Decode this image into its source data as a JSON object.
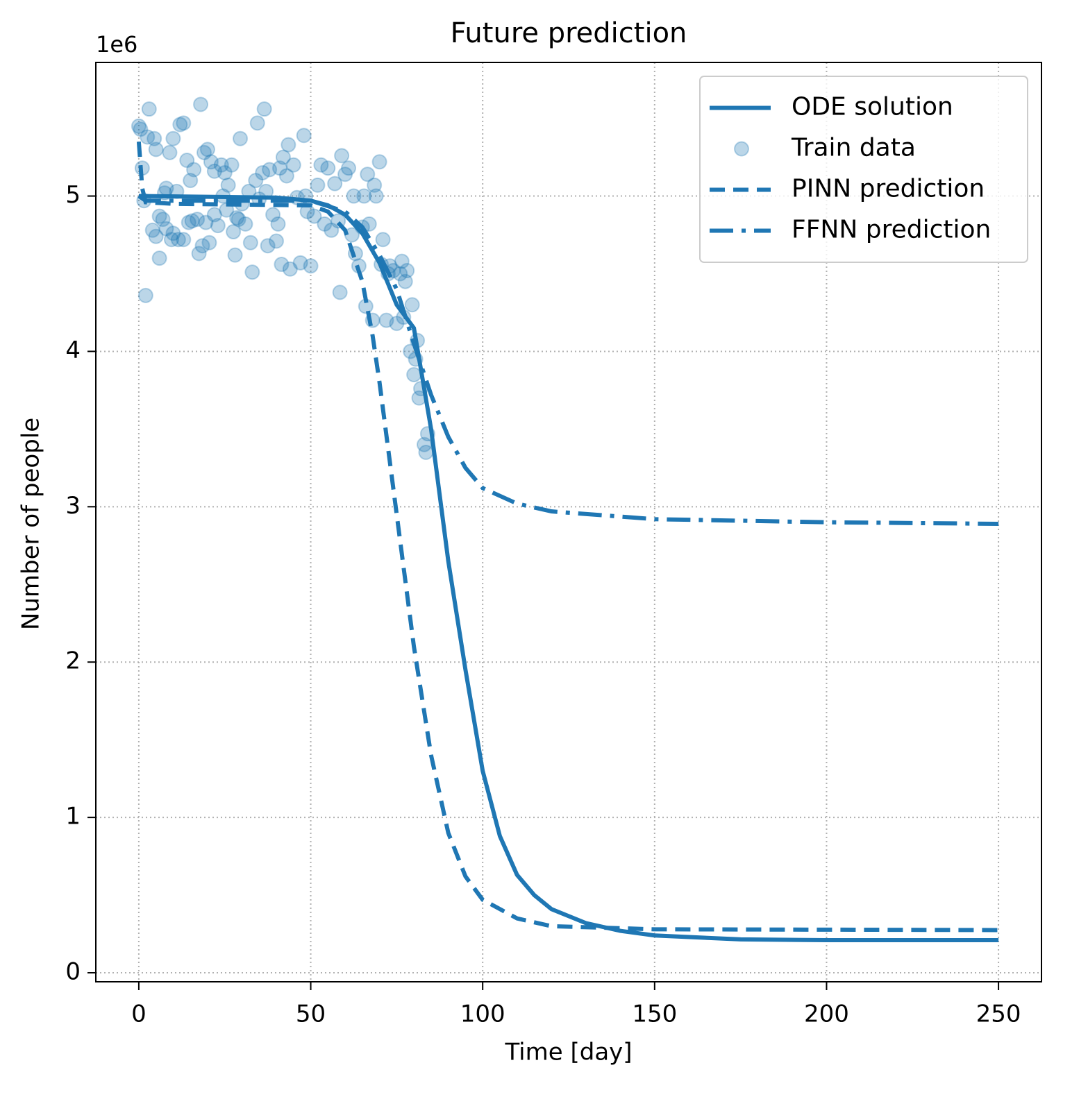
{
  "chart_data": {
    "type": "line",
    "title": "Future prediction",
    "x_label": "Time [day]",
    "y_label": "Number of people",
    "y_offset_text": "1e6",
    "xlim": [
      -12.5,
      262.5
    ],
    "ylim": [
      -0.058,
      5.86
    ],
    "xticks": [
      0,
      50,
      100,
      150,
      200,
      250
    ],
    "yticks": [
      0,
      1,
      2,
      3,
      4,
      5
    ],
    "grid": true,
    "legend": "upper right",
    "series": [
      {
        "name": "ODE solution",
        "style": "solid",
        "color": "#1f77b4",
        "x": [
          0,
          40,
          50,
          55,
          60,
          65,
          70,
          75,
          80,
          85,
          90,
          95,
          100,
          105,
          110,
          115,
          120,
          130,
          140,
          150,
          175,
          200,
          250
        ],
        "values": [
          5.0,
          4.99,
          4.97,
          4.94,
          4.88,
          4.76,
          4.57,
          4.3,
          4.15,
          3.5,
          2.65,
          1.95,
          1.3,
          0.88,
          0.63,
          0.5,
          0.41,
          0.32,
          0.27,
          0.24,
          0.215,
          0.21,
          0.21
        ]
      },
      {
        "name": "Train data",
        "style": "scatter",
        "color": "#1f77b4",
        "x": [
          0,
          0.5,
          1,
          1.5,
          2,
          2.5,
          3,
          4,
          4.5,
          5,
          5,
          6,
          6,
          7,
          7.5,
          8,
          8,
          9,
          9.5,
          10,
          10,
          11,
          11.5,
          12,
          13,
          13,
          14,
          14.5,
          15,
          15.5,
          16,
          17,
          17.5,
          18,
          18.5,
          19,
          19.5,
          20,
          20.5,
          21,
          22,
          22,
          23,
          24,
          24.5,
          25,
          25.5,
          26,
          27,
          27.5,
          28,
          28.5,
          29,
          29.5,
          30,
          31,
          32,
          32.5,
          33,
          34,
          34.5,
          35,
          36,
          36.5,
          37,
          37.5,
          38,
          39,
          40,
          40.5,
          41,
          41.5,
          42,
          43,
          43.5,
          44,
          45,
          46,
          47,
          48,
          48.5,
          49,
          50,
          51,
          52,
          53,
          54,
          55,
          56,
          57,
          58,
          58.5,
          59,
          60,
          61,
          62,
          62.5,
          63,
          64,
          65,
          65.5,
          66,
          66.5,
          67,
          68,
          68.5,
          69,
          70,
          70.5,
          71,
          72,
          72.5,
          73,
          74,
          75,
          76,
          76.5,
          77,
          77.5,
          78,
          79,
          79.5,
          80,
          80.5,
          81,
          81.5,
          82,
          83,
          83.5,
          84
        ],
        "values": [
          5.45,
          5.43,
          5.18,
          4.97,
          4.36,
          5.38,
          5.56,
          4.78,
          5.37,
          5.3,
          4.74,
          4.87,
          4.6,
          4.85,
          5.02,
          5.05,
          4.79,
          5.28,
          4.72,
          4.76,
          5.37,
          5.03,
          4.72,
          5.46,
          5.47,
          4.72,
          5.23,
          4.83,
          5.1,
          4.84,
          5.17,
          4.85,
          4.63,
          5.59,
          4.68,
          5.28,
          4.83,
          5.3,
          4.7,
          5.22,
          4.88,
          5.16,
          4.81,
          5.2,
          5.0,
          5.15,
          4.91,
          5.07,
          5.2,
          4.77,
          4.62,
          4.86,
          4.85,
          5.37,
          4.95,
          4.82,
          5.03,
          4.7,
          4.51,
          5.1,
          5.47,
          4.98,
          5.15,
          5.56,
          5.03,
          4.68,
          5.17,
          4.88,
          4.71,
          4.82,
          5.18,
          4.56,
          5.25,
          5.13,
          5.33,
          4.53,
          5.2,
          4.99,
          4.57,
          5.39,
          5.0,
          4.9,
          4.55,
          4.87,
          5.07,
          5.2,
          4.82,
          5.18,
          4.78,
          5.08,
          4.84,
          4.38,
          5.26,
          5.14,
          5.18,
          4.75,
          5.0,
          4.63,
          4.55,
          4.8,
          5.0,
          4.29,
          5.14,
          4.82,
          4.2,
          5.07,
          5.0,
          5.22,
          4.56,
          4.72,
          4.2,
          4.5,
          4.55,
          4.52,
          4.18,
          4.5,
          4.58,
          4.22,
          4.45,
          4.52,
          4.0,
          4.3,
          3.85,
          3.95,
          4.07,
          3.7,
          3.76,
          3.4,
          3.35,
          3.47
        ]
      },
      {
        "name": "PINN prediction",
        "style": "dashed",
        "color": "#1f77b4",
        "x": [
          0,
          1,
          2,
          10,
          50,
          55,
          60,
          65,
          68,
          70,
          75,
          80,
          85,
          90,
          95,
          100,
          110,
          120,
          150,
          250
        ],
        "values": [
          5.35,
          5.05,
          4.96,
          4.95,
          4.94,
          4.9,
          4.78,
          4.45,
          4.1,
          3.8,
          2.95,
          2.1,
          1.4,
          0.9,
          0.62,
          0.47,
          0.35,
          0.3,
          0.28,
          0.275
        ]
      },
      {
        "name": "FFNN prediction",
        "style": "dashdot",
        "color": "#1f77b4",
        "x": [
          0,
          2,
          50,
          60,
          65,
          70,
          75,
          80,
          85,
          90,
          95,
          100,
          110,
          120,
          150,
          200,
          250
        ],
        "values": [
          5.0,
          4.97,
          4.97,
          4.9,
          4.8,
          4.62,
          4.4,
          4.05,
          3.72,
          3.45,
          3.25,
          3.12,
          3.02,
          2.97,
          2.92,
          2.9,
          2.89
        ]
      }
    ]
  }
}
